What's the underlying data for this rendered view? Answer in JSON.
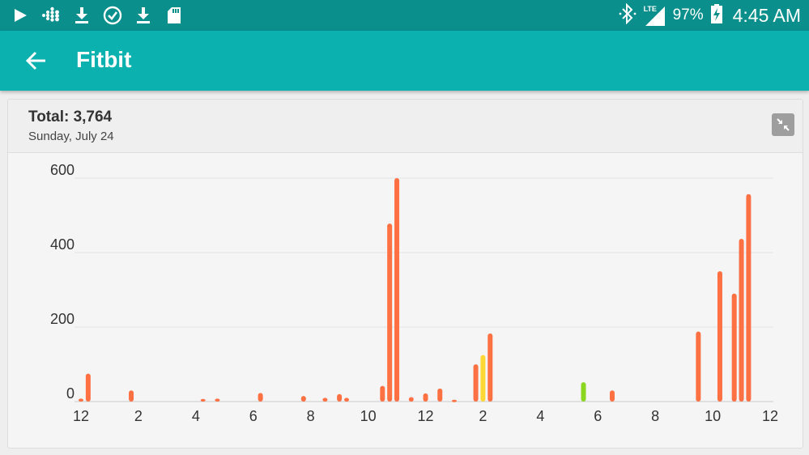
{
  "status_bar": {
    "icons_left": [
      "play-store-icon",
      "fitbit-icon",
      "download-icon",
      "check-circle-icon",
      "download-icon",
      "sd-card-icon"
    ],
    "icons_right": [
      "bluetooth-icon",
      "lte-signal-icon",
      "battery-charging-icon"
    ],
    "network": "LTE",
    "battery": "97%",
    "time": "4:45 AM"
  },
  "app_bar": {
    "back_icon": "arrow-back-icon",
    "title": "Fitbit"
  },
  "card": {
    "total": "Total: 3,764",
    "date": "Sunday, July 24",
    "collapse_icon": "collapse-arrows-icon"
  },
  "colors": {
    "status_bar": "#0a8f8c",
    "app_bar": "#0bb1af",
    "bar_orange": "#ff7043",
    "bar_yellow": "#fdd835",
    "bar_green": "#8bd61f"
  },
  "chart_data": {
    "type": "bar",
    "xlabel": "",
    "ylabel": "",
    "ylim": [
      0,
      600
    ],
    "y_ticks": [
      0,
      200,
      400,
      600
    ],
    "grid": true,
    "x_tick_labels": [
      "12",
      "2",
      "4",
      "6",
      "8",
      "10",
      "12",
      "2",
      "4",
      "6",
      "8",
      "10",
      "12"
    ],
    "x_range_hours": [
      0,
      24
    ],
    "bars": [
      {
        "hour": 0.0,
        "value": 8,
        "color": "#ff7043"
      },
      {
        "hour": 0.25,
        "value": 75,
        "color": "#ff7043"
      },
      {
        "hour": 1.75,
        "value": 30,
        "color": "#ff7043"
      },
      {
        "hour": 4.25,
        "value": 7,
        "color": "#ff7043"
      },
      {
        "hour": 4.75,
        "value": 8,
        "color": "#ff7043"
      },
      {
        "hour": 6.25,
        "value": 23,
        "color": "#ff7043"
      },
      {
        "hour": 7.75,
        "value": 15,
        "color": "#ff7043"
      },
      {
        "hour": 8.5,
        "value": 10,
        "color": "#ff7043"
      },
      {
        "hour": 9.0,
        "value": 20,
        "color": "#ff7043"
      },
      {
        "hour": 9.25,
        "value": 10,
        "color": "#ff7043"
      },
      {
        "hour": 10.5,
        "value": 42,
        "color": "#ff7043"
      },
      {
        "hour": 10.75,
        "value": 478,
        "color": "#ff7043"
      },
      {
        "hour": 11.0,
        "value": 600,
        "color": "#ff7043"
      },
      {
        "hour": 11.5,
        "value": 12,
        "color": "#ff7043"
      },
      {
        "hour": 12.0,
        "value": 22,
        "color": "#ff7043"
      },
      {
        "hour": 12.5,
        "value": 35,
        "color": "#ff7043"
      },
      {
        "hour": 13.0,
        "value": 5,
        "color": "#ff7043"
      },
      {
        "hour": 13.75,
        "value": 100,
        "color": "#ff7043"
      },
      {
        "hour": 14.0,
        "value": 125,
        "color": "#fdd835"
      },
      {
        "hour": 14.25,
        "value": 183,
        "color": "#ff7043"
      },
      {
        "hour": 17.5,
        "value": 52,
        "color": "#8bd61f"
      },
      {
        "hour": 18.5,
        "value": 30,
        "color": "#ff7043"
      },
      {
        "hour": 21.5,
        "value": 188,
        "color": "#ff7043"
      },
      {
        "hour": 22.25,
        "value": 350,
        "color": "#ff7043"
      },
      {
        "hour": 22.75,
        "value": 290,
        "color": "#ff7043"
      },
      {
        "hour": 23.0,
        "value": 437,
        "color": "#ff7043"
      },
      {
        "hour": 23.25,
        "value": 557,
        "color": "#ff7043"
      }
    ]
  }
}
